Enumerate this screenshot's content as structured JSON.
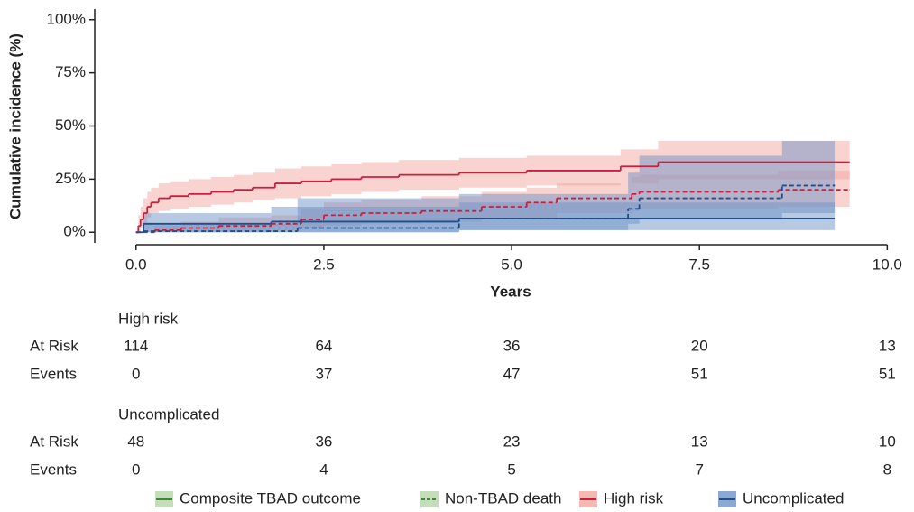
{
  "chart_data": {
    "type": "step",
    "y_label": "Cumulative incidence (%)",
    "x_label": "Years",
    "xlim": [
      -0.55,
      10.2
    ],
    "ylim": [
      -5,
      105
    ],
    "xticks": [
      {
        "value": 0,
        "label": "0.0"
      },
      2.5,
      {
        "value": 5,
        "label": "5.0"
      },
      7.5,
      {
        "value": 10,
        "label": "10.0"
      }
    ],
    "yticks": [
      {
        "value": 0,
        "label": "0%"
      },
      {
        "value": 25,
        "label": "25%"
      },
      {
        "value": 50,
        "label": "50%"
      },
      {
        "value": 75,
        "label": "75%"
      },
      {
        "value": 100,
        "label": "100%"
      }
    ],
    "series": [
      {
        "group": "High risk",
        "dashed": false,
        "color": "#cc1f3f",
        "band_color": "#f2a89f",
        "x": [
          0,
          0.03,
          0.06,
          0.1,
          0.15,
          0.2,
          0.3,
          0.45,
          0.7,
          1.0,
          1.3,
          1.55,
          1.85,
          2.2,
          2.6,
          3.0,
          3.5,
          4.3,
          5.2,
          6.45,
          6.95,
          9.5
        ],
        "values": [
          0,
          3,
          6,
          9,
          12,
          14,
          16,
          17,
          18,
          19,
          20,
          21,
          23,
          24,
          25,
          26,
          27,
          28,
          29,
          31,
          33,
          33
        ],
        "lower": [
          0,
          0,
          2,
          4,
          7,
          9,
          10,
          11,
          12,
          13,
          14,
          15,
          16,
          17,
          18,
          19,
          20,
          21,
          22,
          23,
          25,
          25
        ],
        "upper": [
          0,
          8,
          12,
          16,
          19,
          21,
          23,
          24,
          25,
          26,
          27,
          28,
          30,
          31,
          32,
          33,
          34,
          35,
          36,
          39,
          43,
          43
        ]
      },
      {
        "group": "High risk",
        "dashed": true,
        "color": "#cc1f3f",
        "band_color": "#f2a89f",
        "x": [
          0,
          0.25,
          0.6,
          1.1,
          1.8,
          2.2,
          2.5,
          3.0,
          3.8,
          4.6,
          5.2,
          5.6,
          6.6,
          6.7,
          8.55,
          9.5
        ],
        "values": [
          0,
          1,
          2,
          3,
          4,
          6,
          8,
          9,
          10,
          12,
          14,
          16,
          18,
          19,
          20,
          20
        ],
        "lower": [
          0,
          0,
          0,
          0,
          1,
          2,
          3,
          4,
          5,
          6,
          7,
          9,
          10,
          11,
          12,
          12
        ],
        "upper": [
          0,
          3,
          5,
          7,
          8,
          11,
          14,
          15,
          17,
          19,
          21,
          23,
          26,
          27,
          29,
          29
        ]
      },
      {
        "group": "Uncomplicated",
        "dashed": false,
        "color": "#1f4e8c",
        "band_color": "#6f93c8",
        "x": [
          0,
          0.1,
          1.8,
          4.3,
          9.3
        ],
        "values": [
          0,
          4,
          5,
          6.5,
          6.5
        ],
        "lower": [
          0,
          0,
          0,
          1,
          1
        ],
        "upper": [
          0,
          9,
          12,
          14,
          14
        ]
      },
      {
        "group": "Uncomplicated",
        "dashed": true,
        "color": "#1f4e8c",
        "band_color": "#6f93c8",
        "x": [
          0,
          0.1,
          2.15,
          4.3,
          6.55,
          6.7,
          8.6,
          9.3
        ],
        "values": [
          0,
          0.5,
          2,
          6.5,
          11,
          16,
          22,
          22
        ],
        "lower": [
          0,
          0,
          0,
          1,
          4,
          6,
          9,
          9
        ],
        "upper": [
          0,
          4,
          16,
          18,
          28,
          36,
          43,
          43
        ]
      }
    ],
    "legend": [
      {
        "label": "Composite TBAD outcome",
        "color": "#3a8a3a",
        "fill": "#b5d6a7",
        "dashed": false
      },
      {
        "label": "Non-TBAD death",
        "color": "#3a8a3a",
        "fill": "#b5d6a7",
        "dashed": true
      },
      {
        "label": "High risk",
        "color": "#cc1f3f",
        "fill": "#f2a89f",
        "dashed": false
      },
      {
        "label": "Uncomplicated",
        "color": "#1f4e8c",
        "fill": "#6f93c8",
        "dashed": false
      }
    ],
    "risk_table": {
      "groups": [
        {
          "name": "High risk",
          "rows": [
            {
              "label": "At Risk",
              "values": [
                114,
                64,
                36,
                20,
                13
              ]
            },
            {
              "label": "Events",
              "values": [
                0,
                37,
                47,
                51,
                51
              ]
            }
          ]
        },
        {
          "name": "Uncomplicated",
          "rows": [
            {
              "label": "At Risk",
              "values": [
                48,
                36,
                23,
                13,
                10
              ]
            },
            {
              "label": "Events",
              "values": [
                0,
                4,
                5,
                7,
                8
              ]
            }
          ]
        }
      ]
    }
  }
}
